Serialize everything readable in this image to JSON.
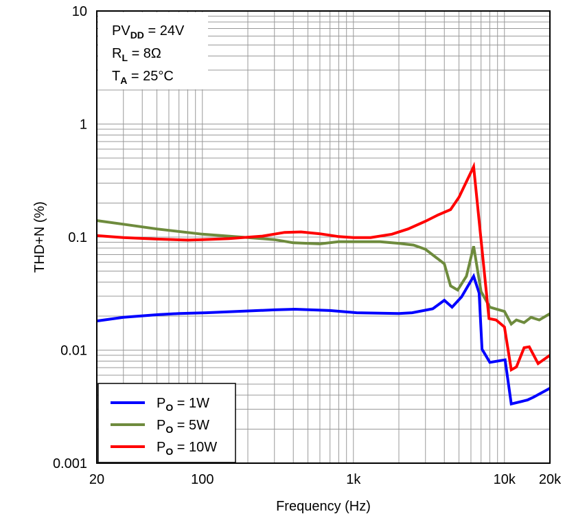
{
  "chart_data": {
    "type": "line",
    "xlabel": "Frequency (Hz)",
    "ylabel": "THD+N (%)",
    "xscale": "log",
    "yscale": "log",
    "xlim": [
      20,
      20000
    ],
    "ylim": [
      0.001,
      10
    ],
    "grid": true,
    "legend_position": "bottom-left",
    "x_ticks": [
      {
        "v": 20,
        "label": "20"
      },
      {
        "v": 100,
        "label": "100"
      },
      {
        "v": 1000,
        "label": "1k"
      },
      {
        "v": 10000,
        "label": "10k"
      },
      {
        "v": 20000,
        "label": "20k"
      }
    ],
    "y_ticks": [
      {
        "v": 10,
        "label": "10"
      },
      {
        "v": 1,
        "label": "1"
      },
      {
        "v": 0.1,
        "label": "0.1"
      },
      {
        "v": 0.01,
        "label": "0.01"
      },
      {
        "v": 0.001,
        "label": "0.001"
      }
    ],
    "annotations": [
      {
        "main": "PV",
        "sub": "DD",
        "rest": " = 24V"
      },
      {
        "main": "R",
        "sub": "L",
        "rest": " = 8Ω"
      },
      {
        "main": "T",
        "sub": "A",
        "rest": " = 25°C"
      }
    ],
    "series": [
      {
        "name": "P",
        "name_sub": "O",
        "name_rest": " = 1W",
        "color": "#0000ff",
        "x": [
          20,
          30,
          51,
          70,
          106,
          300,
          410,
          700,
          1050,
          2000,
          2450,
          3350,
          4000,
          4500,
          5200,
          6250,
          6800,
          7100,
          8000,
          10100,
          11100,
          14200,
          15600,
          20000
        ],
        "y": [
          0.0181,
          0.0195,
          0.0206,
          0.0211,
          0.0214,
          0.0227,
          0.023,
          0.0224,
          0.0214,
          0.0211,
          0.0214,
          0.0232,
          0.0276,
          0.024,
          0.0296,
          0.045,
          0.032,
          0.0102,
          0.0078,
          0.0082,
          0.00334,
          0.00362,
          0.00384,
          0.0046
        ]
      },
      {
        "name": "P",
        "name_sub": "O",
        "name_rest": " = 5W",
        "color": "#6e8b3d",
        "x": [
          20,
          30,
          50,
          100,
          200,
          300,
          400,
          600,
          800,
          1000,
          1500,
          2000,
          2500,
          3000,
          4000,
          4400,
          4900,
          5600,
          6250,
          7000,
          8000,
          10000,
          11100,
          12000,
          13500,
          15000,
          17000,
          20000
        ],
        "y": [
          0.14,
          0.13,
          0.118,
          0.106,
          0.099,
          0.095,
          0.089,
          0.087,
          0.091,
          0.091,
          0.091,
          0.088,
          0.085,
          0.078,
          0.058,
          0.037,
          0.034,
          0.045,
          0.083,
          0.033,
          0.024,
          0.022,
          0.017,
          0.0185,
          0.0175,
          0.0195,
          0.0185,
          0.021
        ]
      },
      {
        "name": "P",
        "name_sub": "O",
        "name_rest": " = 10W",
        "color": "#ff0000",
        "x": [
          20,
          30,
          50,
          80,
          100,
          150,
          250,
          350,
          450,
          600,
          800,
          1000,
          1300,
          1800,
          2300,
          3000,
          3600,
          4400,
          5000,
          6250,
          7900,
          8800,
          10000,
          11100,
          12000,
          13500,
          14600,
          16700,
          20000
        ],
        "y": [
          0.103,
          0.099,
          0.096,
          0.094,
          0.095,
          0.097,
          0.102,
          0.11,
          0.111,
          0.107,
          0.101,
          0.099,
          0.099,
          0.106,
          0.118,
          0.138,
          0.156,
          0.175,
          0.225,
          0.42,
          0.019,
          0.0185,
          0.016,
          0.0067,
          0.0071,
          0.0105,
          0.0107,
          0.0076,
          0.009
        ]
      }
    ]
  }
}
